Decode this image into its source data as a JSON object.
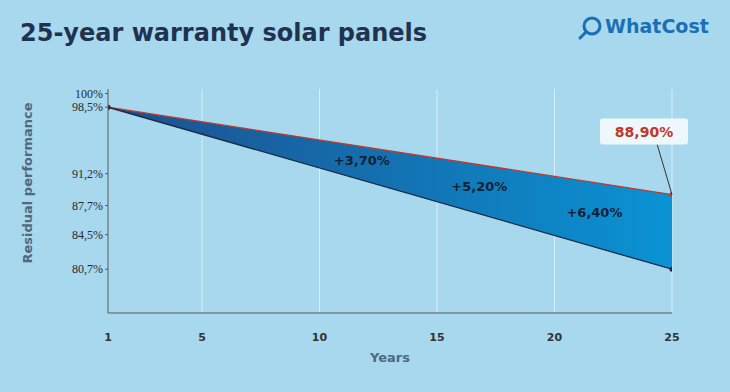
{
  "chart_data": {
    "type": "area",
    "title": "25-year warranty solar panels",
    "logo": "WhatCost",
    "x_label": "Years",
    "y_label": "Residual performance",
    "x": [
      1,
      25
    ],
    "series": [
      {
        "color": "#c0392b",
        "values": [
          98.5,
          88.9
        ]
      },
      {
        "color": "#1b2a44",
        "values": [
          98.5,
          80.7
        ]
      }
    ],
    "marker": "circle",
    "xlim": [
      1,
      25
    ],
    "xticks": [
      1,
      5,
      10,
      15,
      20,
      25
    ],
    "ylim": [
      76,
      100.5
    ],
    "yticks": [
      {
        "value": 100,
        "label": "100%"
      },
      {
        "value": 98.5,
        "label": "98,5%"
      },
      {
        "value": 91.2,
        "label": "91,2%"
      },
      {
        "value": 87.7,
        "label": "87,7%"
      },
      {
        "value": 84.5,
        "label": "84,5%"
      },
      {
        "value": 80.7,
        "label": "80,7%"
      }
    ],
    "grid": true,
    "annotations": [
      {
        "x": 11.8,
        "label": "+3,70%"
      },
      {
        "x": 16.8,
        "label": "+5,20%"
      },
      {
        "x": 21.7,
        "label": "+6,40%"
      }
    ],
    "end_label": {
      "x": 25,
      "y": 88.9,
      "label": "88,90%"
    }
  }
}
